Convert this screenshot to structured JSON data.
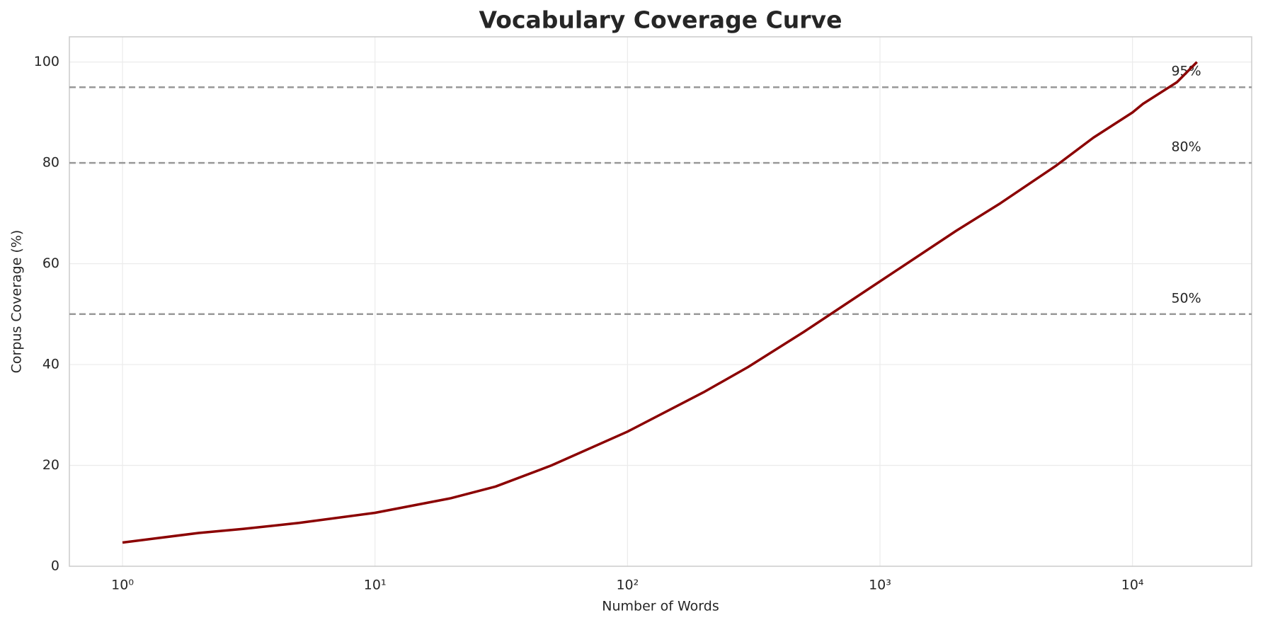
{
  "chart_data": {
    "type": "line",
    "title": "Vocabulary Coverage Curve",
    "x_label": "Number of Words",
    "y_label": "Corpus Coverage (%)",
    "x": [
      1,
      2,
      3,
      5,
      10,
      20,
      30,
      50,
      100,
      200,
      300,
      500,
      1000,
      2000,
      3000,
      5000,
      7000,
      10000,
      11000,
      15000,
      18000
    ],
    "values": [
      4.7,
      6.6,
      7.4,
      8.6,
      10.6,
      13.5,
      15.8,
      20,
      26.7,
      34.5,
      39.5,
      46.5,
      56.5,
      66.5,
      72,
      79.5,
      85,
      90,
      91.7,
      96,
      100
    ],
    "color": "#8b0000",
    "xscale": "log",
    "xlim": [
      0.616,
      29650
    ],
    "ylim": [
      0,
      105
    ],
    "xticks": [
      {
        "value": 1,
        "label": "10⁰"
      },
      {
        "value": 10,
        "label": "10¹"
      },
      {
        "value": 100,
        "label": "10²"
      },
      {
        "value": 1000,
        "label": "10³"
      },
      {
        "value": 10000,
        "label": "10⁴"
      }
    ],
    "yticks": [
      0,
      20,
      40,
      60,
      80,
      100
    ],
    "grid": true,
    "reference_lines": [
      {
        "value": 95,
        "label": "95%"
      },
      {
        "value": 80,
        "label": "80%"
      },
      {
        "value": 50,
        "label": "50%"
      }
    ]
  }
}
